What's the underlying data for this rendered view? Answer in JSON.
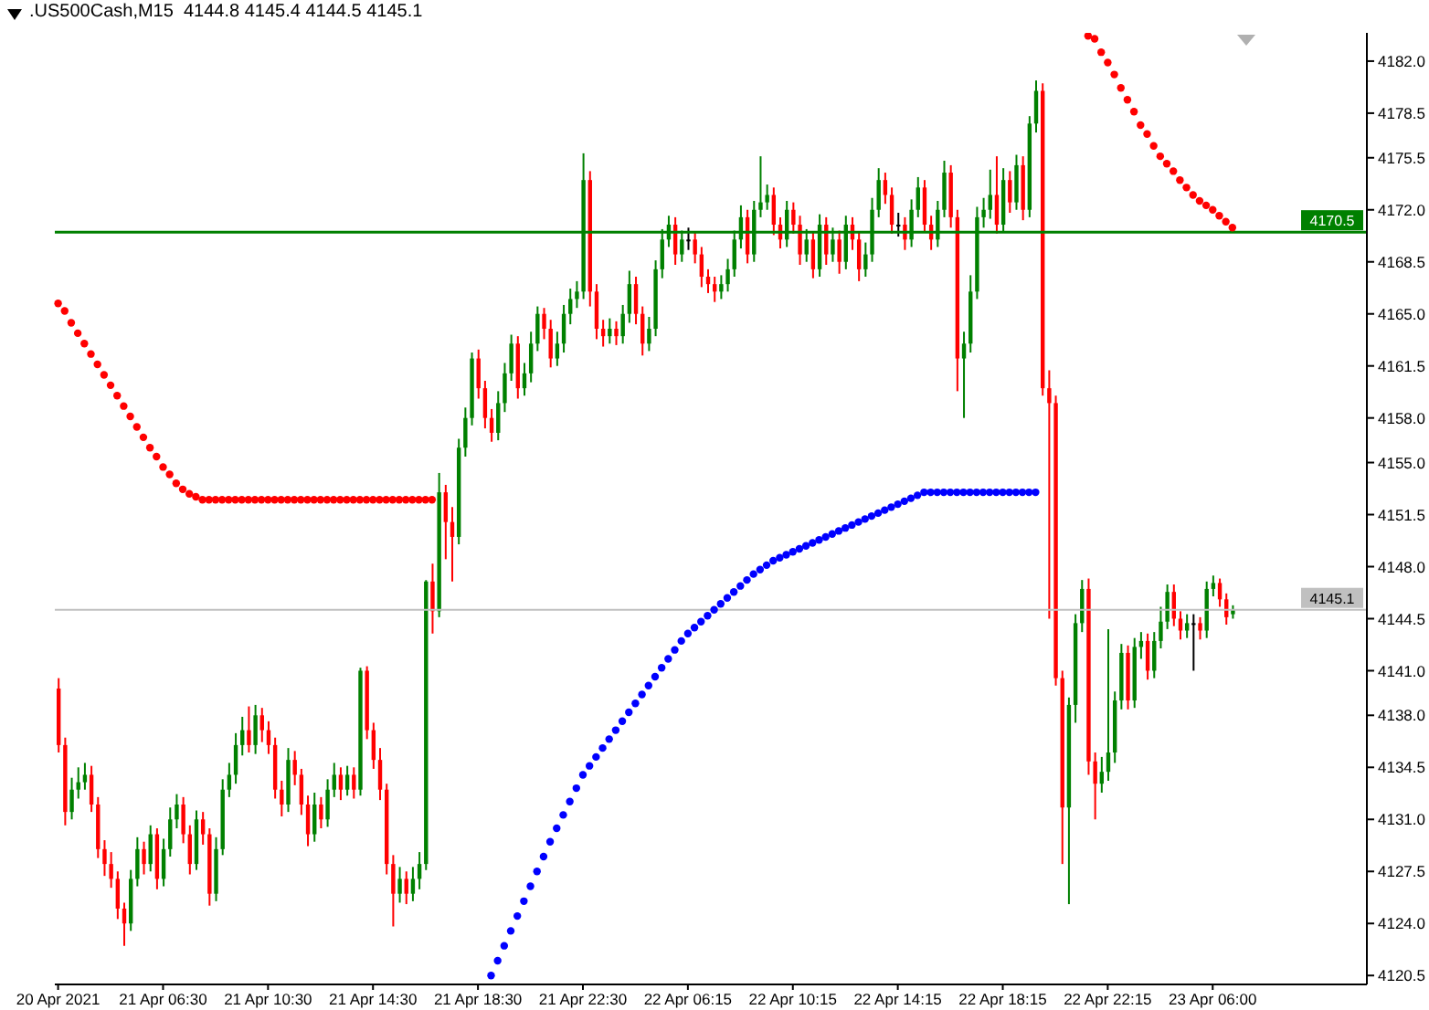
{
  "chart_data": {
    "type": "candlestick",
    "title": ".US500Cash,M15  4144.8 4145.4 4144.5 4145.1",
    "categories": [
      "20 Apr 2021",
      null,
      null,
      null,
      null,
      null,
      null,
      null,
      null,
      null,
      null,
      null,
      null,
      null,
      null,
      null,
      "21 Apr 06:30",
      null,
      null,
      null,
      null,
      null,
      null,
      null,
      null,
      null,
      null,
      null,
      null,
      null,
      null,
      null,
      "21 Apr 10:30",
      null,
      null,
      null,
      null,
      null,
      null,
      null,
      null,
      null,
      null,
      null,
      null,
      null,
      null,
      null,
      "21 Apr 14:30",
      null,
      null,
      null,
      null,
      null,
      null,
      null,
      null,
      null,
      null,
      null,
      null,
      null,
      null,
      null,
      "21 Apr 18:30",
      null,
      null,
      null,
      null,
      null,
      null,
      null,
      null,
      null,
      null,
      null,
      null,
      null,
      null,
      null,
      "21 Apr 22:30",
      null,
      null,
      null,
      null,
      null,
      null,
      null,
      null,
      null,
      null,
      null,
      null,
      null,
      null,
      null,
      "22 Apr 06:15",
      null,
      null,
      null,
      null,
      null,
      null,
      null,
      null,
      null,
      null,
      null,
      null,
      null,
      null,
      null,
      "22 Apr 10:15",
      null,
      null,
      null,
      null,
      null,
      null,
      null,
      null,
      null,
      null,
      null,
      null,
      null,
      null,
      null,
      "22 Apr 14:15",
      null,
      null,
      null,
      null,
      null,
      null,
      null,
      null,
      null,
      null,
      null,
      null,
      null,
      null,
      null,
      "22 Apr 18:15",
      null,
      null,
      null,
      null,
      null,
      null,
      null,
      null,
      null,
      null,
      null,
      null,
      null,
      null,
      null,
      "22 Apr 22:15",
      null,
      null,
      null,
      null,
      null,
      null,
      null,
      null,
      null,
      null,
      null,
      null,
      null,
      null,
      null,
      "23 Apr 06:00",
      null,
      null,
      null,
      null,
      null,
      null,
      null,
      null,
      null,
      null,
      null,
      null,
      null,
      null,
      null,
      null,
      null,
      null,
      null,
      null,
      null,
      null,
      null
    ],
    "ohlc": [
      [
        4139.8,
        4140.5,
        4135.5,
        4136
      ],
      [
        4136,
        4136.5,
        4130.6,
        4131.5
      ],
      [
        4131.5,
        4133.8,
        4131,
        4133
      ],
      [
        4133,
        4134.5,
        4132.4,
        4133.5
      ],
      [
        4133.5,
        4134.8,
        4133,
        4134
      ],
      [
        4134,
        4134.6,
        4131.5,
        4132
      ],
      [
        4132,
        4132.5,
        4128.4,
        4129
      ],
      [
        4129,
        4129.6,
        4127.2,
        4128
      ],
      [
        4128,
        4128.8,
        4126.4,
        4127
      ],
      [
        4127,
        4127.5,
        4124.3,
        4125
      ],
      [
        4125,
        4125.4,
        4122.5,
        4124
      ],
      [
        4124,
        4127.6,
        4123.5,
        4127
      ],
      [
        4127,
        4129.8,
        4126.5,
        4129
      ],
      [
        4129,
        4129.5,
        4127.3,
        4128
      ],
      [
        4128,
        4130.6,
        4127.5,
        4130
      ],
      [
        4130,
        4130.4,
        4126.3,
        4127
      ],
      [
        4127,
        4129.7,
        4126.5,
        4129
      ],
      [
        4129,
        4131.8,
        4128.5,
        4131
      ],
      [
        4131,
        4132.7,
        4130.4,
        4132
      ],
      [
        4132,
        4132.5,
        4129.4,
        4130
      ],
      [
        4130,
        4130.6,
        4127.3,
        4128
      ],
      [
        4128,
        4131.6,
        4127.6,
        4131
      ],
      [
        4131,
        4131.5,
        4129.3,
        4130
      ],
      [
        4130,
        4130.4,
        4125.2,
        4126
      ],
      [
        4126,
        4129.8,
        4125.5,
        4129
      ],
      [
        4129,
        4133.7,
        4128.6,
        4133
      ],
      [
        4133,
        4134.8,
        4132.5,
        4134
      ],
      [
        4134,
        4136.8,
        4133.4,
        4136
      ],
      [
        4136,
        4137.9,
        4135.3,
        4137
      ],
      [
        4137,
        4138.6,
        4135.5,
        4136
      ],
      [
        4136,
        4138.7,
        4135.4,
        4138
      ],
      [
        4138,
        4138.5,
        4136.2,
        4137
      ],
      [
        4137,
        4137.6,
        4135.4,
        4136
      ],
      [
        4136,
        4136.5,
        4132.4,
        4133
      ],
      [
        4133,
        4133.6,
        4131.2,
        4132
      ],
      [
        4132,
        4135.8,
        4131.5,
        4135
      ],
      [
        4135,
        4135.6,
        4133.3,
        4134
      ],
      [
        4134,
        4134.4,
        4131.3,
        4132
      ],
      [
        4132,
        4132.6,
        4129.2,
        4130
      ],
      [
        4130,
        4132.8,
        4129.5,
        4132
      ],
      [
        4132,
        4132.5,
        4130.4,
        4131
      ],
      [
        4131,
        4133.7,
        4130.5,
        4133
      ],
      [
        4133,
        4134.8,
        4132.5,
        4134
      ],
      [
        4134,
        4134.5,
        4132.3,
        4133
      ],
      [
        4133,
        4134.6,
        4132.6,
        4134
      ],
      [
        4134,
        4134.5,
        4132.4,
        4133
      ],
      [
        4133,
        4141.2,
        4132.6,
        4141
      ],
      [
        4141,
        4141.3,
        4136.4,
        4137
      ],
      [
        4137,
        4137.5,
        4134.4,
        4135
      ],
      [
        4135,
        4135.8,
        4132.3,
        4133
      ],
      [
        4133,
        4133.4,
        4127.3,
        4128
      ],
      [
        4128,
        4128.6,
        4123.8,
        4126
      ],
      [
        4126,
        4127.8,
        4125.4,
        4127
      ],
      [
        4127,
        4127.5,
        4125.3,
        4126
      ],
      [
        4126,
        4127.8,
        4125.5,
        4127
      ],
      [
        4127,
        4128.8,
        4126.3,
        4128
      ],
      [
        4128,
        4147.1,
        4127.6,
        4147
      ],
      [
        4147,
        4148.2,
        4143.5,
        4145
      ],
      [
        4145,
        4154.3,
        4144.6,
        4153
      ],
      [
        4153,
        4153.5,
        4148.5,
        4151
      ],
      [
        4151,
        4152,
        4147,
        4150
      ],
      [
        4150,
        4156.6,
        4149.5,
        4156
      ],
      [
        4156,
        4158.7,
        4155.4,
        4158
      ],
      [
        4158,
        4162.4,
        4157.5,
        4162
      ],
      [
        4162,
        4162.6,
        4159.3,
        4160
      ],
      [
        4160,
        4160.5,
        4157.3,
        4158
      ],
      [
        4158,
        4158.6,
        4156.4,
        4157
      ],
      [
        4157,
        4159.8,
        4156.5,
        4159
      ],
      [
        4159,
        4161.7,
        4158.4,
        4161
      ],
      [
        4161,
        4163.6,
        4160.5,
        4163
      ],
      [
        4163,
        4163.5,
        4159.3,
        4160
      ],
      [
        4160,
        4161.7,
        4159.5,
        4161
      ],
      [
        4161,
        4163.8,
        4160.4,
        4163
      ],
      [
        4163,
        4165.5,
        4162.5,
        4165
      ],
      [
        4165,
        4165.4,
        4163.3,
        4164
      ],
      [
        4164,
        4164.6,
        4161.4,
        4162
      ],
      [
        4162,
        4163.8,
        4161.5,
        4163
      ],
      [
        4163,
        4165.6,
        4162.4,
        4165
      ],
      [
        4165,
        4166.7,
        4164.3,
        4166
      ],
      [
        4166,
        4167.2,
        4165.4,
        4166.5
      ],
      [
        4166.5,
        4175.8,
        4166,
        4174
      ],
      [
        4174,
        4174.6,
        4165.5,
        4166.5
      ],
      [
        4166.5,
        4167,
        4163.3,
        4164
      ],
      [
        4164,
        4164.6,
        4162.8,
        4163.5
      ],
      [
        4163.5,
        4164.7,
        4163,
        4164
      ],
      [
        4164,
        4164.5,
        4162.9,
        4163.5
      ],
      [
        4163.5,
        4165.6,
        4163,
        4165
      ],
      [
        4165,
        4167.9,
        4164.4,
        4167
      ],
      [
        4167,
        4167.5,
        4164.3,
        4165
      ],
      [
        4165,
        4165.5,
        4162.2,
        4163
      ],
      [
        4163,
        4164.8,
        4162.5,
        4164
      ],
      [
        4164,
        4168.6,
        4163.5,
        4168
      ],
      [
        4168,
        4170.7,
        4167.4,
        4170
      ],
      [
        4170,
        4171.6,
        4169.5,
        4171
      ],
      [
        4171,
        4171.5,
        4168.3,
        4169
      ],
      [
        4169,
        4170.6,
        4168.5,
        4170
      ],
      [
        4170,
        4170.8,
        4169.3,
        4170
      ],
      [
        4170,
        4170.5,
        4168.4,
        4169
      ],
      [
        4169,
        4169.5,
        4166.8,
        4167.5
      ],
      [
        4167.5,
        4168,
        4166.4,
        4167
      ],
      [
        4167,
        4167.5,
        4165.8,
        4166.5
      ],
      [
        4166.5,
        4167.6,
        4166,
        4167
      ],
      [
        4167,
        4168.7,
        4166.5,
        4168
      ],
      [
        4168,
        4170.6,
        4167.5,
        4170
      ],
      [
        4170,
        4172.3,
        4169.4,
        4171.5
      ],
      [
        4171.5,
        4172,
        4168.4,
        4169
      ],
      [
        4169,
        4172.6,
        4168.5,
        4172
      ],
      [
        4172,
        4175.6,
        4171.5,
        4172.5
      ],
      [
        4172.5,
        4173.7,
        4172,
        4173
      ],
      [
        4173,
        4173.5,
        4170.3,
        4171
      ],
      [
        4171,
        4171.5,
        4169.4,
        4170
      ],
      [
        4170,
        4172.6,
        4169.5,
        4172
      ],
      [
        4172,
        4172.5,
        4170.4,
        4171
      ],
      [
        4171,
        4171.6,
        4168.3,
        4169
      ],
      [
        4169,
        4170.7,
        4168.5,
        4170
      ],
      [
        4170,
        4170.5,
        4167.4,
        4168
      ],
      [
        4168,
        4171.7,
        4167.5,
        4171
      ],
      [
        4171,
        4171.5,
        4168.3,
        4169
      ],
      [
        4169,
        4170.8,
        4168.5,
        4170
      ],
      [
        4170,
        4170.6,
        4167.7,
        4168.5
      ],
      [
        4168.5,
        4171.6,
        4168,
        4171
      ],
      [
        4171,
        4171.5,
        4169.3,
        4170
      ],
      [
        4170,
        4170.5,
        4167.2,
        4168
      ],
      [
        4168,
        4169.8,
        4167.5,
        4169
      ],
      [
        4169,
        4172.8,
        4168.5,
        4172
      ],
      [
        4172,
        4174.8,
        4171.5,
        4174
      ],
      [
        4174,
        4174.5,
        4172.4,
        4173
      ],
      [
        4173,
        4173.5,
        4170.4,
        4171
      ],
      [
        4171,
        4171.8,
        4170.2,
        4171
      ],
      [
        4171,
        4171.5,
        4169.3,
        4170
      ],
      [
        4170,
        4172.7,
        4169.5,
        4172
      ],
      [
        4172,
        4174.2,
        4171.5,
        4173.5
      ],
      [
        4173.5,
        4174,
        4170.5,
        4171
      ],
      [
        4171,
        4171.6,
        4169.3,
        4170
      ],
      [
        4170,
        4172.6,
        4169.5,
        4172
      ],
      [
        4172,
        4175.3,
        4171.5,
        4174.5
      ],
      [
        4174.5,
        4175,
        4170.8,
        4171.5
      ],
      [
        4171.5,
        4172,
        4159.8,
        4162
      ],
      [
        4162,
        4163.8,
        4158,
        4163
      ],
      [
        4163,
        4167.6,
        4162.4,
        4166.5
      ],
      [
        4166.5,
        4172.2,
        4166,
        4171.5
      ],
      [
        4171.5,
        4172.8,
        4170.8,
        4172
      ],
      [
        4172,
        4174.7,
        4171.4,
        4173
      ],
      [
        4173,
        4175.6,
        4170.4,
        4171
      ],
      [
        4171,
        4174.8,
        4170.5,
        4174
      ],
      [
        4174,
        4174.6,
        4171.8,
        4172.5
      ],
      [
        4172.5,
        4175.7,
        4172,
        4175
      ],
      [
        4175,
        4175.6,
        4171.3,
        4172
      ],
      [
        4172,
        4178.3,
        4171.5,
        4177.8
      ],
      [
        4177.8,
        4180.7,
        4177.2,
        4180
      ],
      [
        4180,
        4180.5,
        4159.5,
        4160
      ],
      [
        4160,
        4161.2,
        4144.5,
        4159
      ],
      [
        4159,
        4159.5,
        4140,
        4140.5
      ],
      [
        4140.5,
        4141,
        4128,
        4131.8
      ],
      [
        4131.8,
        4139.2,
        4125.3,
        4138.7
      ],
      [
        4138.7,
        4144.8,
        4137.5,
        4144.2
      ],
      [
        4144.2,
        4147.1,
        4143.6,
        4146.5
      ],
      [
        4146.5,
        4147.2,
        4134,
        4134.9
      ],
      [
        4134.9,
        4135.5,
        4131,
        4133.4
      ],
      [
        4133.4,
        4135.2,
        4132.8,
        4134.2
      ],
      [
        4134.2,
        4143.8,
        4133.6,
        4135.5
      ],
      [
        4135.5,
        4139.6,
        4134.8,
        4139
      ],
      [
        4139,
        4142.8,
        4138.4,
        4142.2
      ],
      [
        4142.2,
        4142.7,
        4138.4,
        4139
      ],
      [
        4139,
        4143.2,
        4138.5,
        4142.6
      ],
      [
        4142.6,
        4143.6,
        4141.8,
        4143
      ],
      [
        4143,
        4143.5,
        4140.4,
        4141
      ],
      [
        4141,
        4143.6,
        4140.5,
        4143
      ],
      [
        4143,
        4145.3,
        4142.5,
        4144.3
      ],
      [
        4144.3,
        4146.8,
        4143.8,
        4146.3
      ],
      [
        4146.3,
        4146.8,
        4144,
        4144.5
      ],
      [
        4144.5,
        4145,
        4143.1,
        4143.7
      ],
      [
        4143.7,
        4144.8,
        4143.2,
        4144.2
      ],
      [
        4144.2,
        4144.8,
        4141,
        4144.2
      ],
      [
        4144.2,
        4144.6,
        4143.1,
        4143.7
      ],
      [
        4143.7,
        4147,
        4143.2,
        4146.5
      ],
      [
        4146.5,
        4147.4,
        4146,
        4146.9
      ],
      [
        4146.9,
        4147.2,
        4145.3,
        4145.8
      ],
      [
        4145.8,
        4146.2,
        4144.1,
        4144.6
      ],
      [
        4144.8,
        4145.4,
        4144.5,
        4145.1
      ],
      null,
      null,
      null,
      null,
      null,
      null,
      null,
      null,
      null,
      null,
      null,
      null,
      null,
      null,
      null,
      null,
      null,
      null,
      null,
      null
    ],
    "colors": [
      "#ff0000",
      "#ff0000",
      "#008000",
      "#008000",
      "#008000",
      "#ff0000",
      "#ff0000",
      "#ff0000",
      "#ff0000",
      "#ff0000",
      "#ff0000",
      "#008000",
      "#008000",
      "#ff0000",
      "#008000",
      "#ff0000",
      "#008000",
      "#008000",
      "#008000",
      "#ff0000",
      "#ff0000",
      "#008000",
      "#ff0000",
      "#ff0000",
      "#008000",
      "#008000",
      "#008000",
      "#008000",
      "#008000",
      "#ff0000",
      "#008000",
      "#ff0000",
      "#ff0000",
      "#ff0000",
      "#ff0000",
      "#008000",
      "#ff0000",
      "#ff0000",
      "#ff0000",
      "#008000",
      "#ff0000",
      "#008000",
      "#008000",
      "#ff0000",
      "#008000",
      "#ff0000",
      "#008000",
      "#ff0000",
      "#ff0000",
      "#ff0000",
      "#ff0000",
      "#ff0000",
      "#008000",
      "#ff0000",
      "#008000",
      "#008000",
      "#008000",
      "#ff0000",
      "#008000",
      "#ff0000",
      "#ff0000",
      "#008000",
      "#008000",
      "#008000",
      "#ff0000",
      "#ff0000",
      "#ff0000",
      "#008000",
      "#008000",
      "#008000",
      "#ff0000",
      "#008000",
      "#008000",
      "#008000",
      "#ff0000",
      "#ff0000",
      "#008000",
      "#008000",
      "#008000",
      "#008000",
      "#008000",
      "#ff0000",
      "#ff0000",
      "#ff0000",
      "#008000",
      "#ff0000",
      "#008000",
      "#008000",
      "#ff0000",
      "#ff0000",
      "#008000",
      "#008000",
      "#008000",
      "#008000",
      "#ff0000",
      "#008000",
      "#000000",
      "#ff0000",
      "#ff0000",
      "#ff0000",
      "#ff0000",
      "#008000",
      "#008000",
      "#008000",
      "#008000",
      "#ff0000",
      "#008000",
      "#008000",
      "#008000",
      "#ff0000",
      "#ff0000",
      "#008000",
      "#ff0000",
      "#ff0000",
      "#008000",
      "#ff0000",
      "#008000",
      "#ff0000",
      "#008000",
      "#ff0000",
      "#008000",
      "#ff0000",
      "#ff0000",
      "#008000",
      "#008000",
      "#008000",
      "#ff0000",
      "#ff0000",
      "#000000",
      "#ff0000",
      "#008000",
      "#008000",
      "#ff0000",
      "#ff0000",
      "#008000",
      "#008000",
      "#ff0000",
      "#ff0000",
      "#008000",
      "#008000",
      "#008000",
      "#008000",
      "#008000",
      "#ff0000",
      "#008000",
      "#ff0000",
      "#008000",
      "#ff0000",
      "#008000",
      "#008000",
      "#ff0000",
      "#ff0000",
      "#ff0000",
      "#ff0000",
      "#008000",
      "#008000",
      "#008000",
      "#ff0000",
      "#ff0000",
      "#008000",
      "#008000",
      "#008000",
      "#008000",
      "#ff0000",
      "#008000",
      "#008000",
      "#ff0000",
      "#008000",
      "#008000",
      "#008000",
      "#ff0000",
      "#ff0000",
      "#008000",
      "#000000",
      "#ff0000",
      "#008000",
      "#008000",
      "#ff0000",
      "#ff0000",
      "#008000",
      null,
      null,
      null,
      null,
      null,
      null,
      null,
      null,
      null,
      null,
      null,
      null,
      null,
      null,
      null,
      null,
      null,
      null,
      null,
      null
    ],
    "series": [
      {
        "type": "scatter",
        "color": "#ff0000",
        "values": [
          4165.7,
          4165.2,
          4164.4,
          4163.7,
          4163.0,
          4162.3,
          4161.6,
          4160.9,
          4160.2,
          4159.5,
          4158.8,
          4158.1,
          4157.4,
          4156.7,
          4156.0,
          4155.4,
          4154.7,
          4154.2,
          4153.6,
          4153.2,
          4152.9,
          4152.7,
          4152.5,
          4152.5,
          4152.5,
          4152.5,
          4152.5,
          4152.5,
          4152.5,
          4152.5,
          4152.5,
          4152.5,
          4152.5,
          4152.5,
          4152.5,
          4152.5,
          4152.5,
          4152.5,
          4152.5,
          4152.5,
          4152.5,
          4152.5,
          4152.5,
          4152.5,
          4152.5,
          4152.5,
          4152.5,
          4152.5,
          4152.5,
          4152.5,
          4152.5,
          4152.5,
          4152.5,
          4152.5,
          4152.5,
          4152.5,
          4152.5,
          4152.5,
          null,
          null,
          null,
          null,
          null,
          null,
          null,
          null,
          null,
          null,
          null,
          null,
          null,
          null,
          null,
          null,
          null,
          null,
          null,
          null,
          null,
          null,
          null,
          null,
          null,
          null,
          null,
          null,
          null,
          null,
          null,
          null,
          null,
          null,
          null,
          null,
          null,
          null,
          null,
          null,
          null,
          null,
          null,
          null,
          null,
          null,
          null,
          null,
          null,
          null,
          null,
          null,
          null,
          null,
          null,
          null,
          null,
          null,
          null,
          null,
          null,
          null,
          null,
          null,
          null,
          null,
          null,
          null,
          null,
          null,
          null,
          null,
          null,
          null,
          null,
          null,
          null,
          null,
          null,
          null,
          null,
          null,
          null,
          null,
          null,
          null,
          null,
          null,
          null,
          null,
          null,
          null,
          null,
          null,
          null,
          null,
          null,
          null,
          null,
          4183.7,
          4183.5,
          4182.6,
          4181.9,
          4181.1,
          4180.2,
          4179.4,
          4178.6,
          4177.7,
          4177.1,
          4176.3,
          4175.6,
          4175.1,
          4174.6,
          4174.0,
          4173.5,
          4173.0,
          4172.6,
          4172.3,
          4172.0,
          4171.6,
          4171.2,
          4170.8,
          null,
          null,
          null,
          null,
          null,
          null,
          null,
          null,
          null,
          null,
          null,
          null,
          null,
          null,
          null,
          null,
          null,
          null,
          null,
          null
        ]
      },
      {
        "type": "scatter",
        "color": "#0000ff",
        "values": [
          null,
          null,
          null,
          null,
          null,
          null,
          null,
          null,
          null,
          null,
          null,
          null,
          null,
          null,
          null,
          null,
          null,
          null,
          null,
          null,
          null,
          null,
          null,
          null,
          null,
          null,
          null,
          null,
          null,
          null,
          null,
          null,
          null,
          null,
          null,
          null,
          null,
          null,
          null,
          null,
          null,
          null,
          null,
          null,
          null,
          null,
          null,
          null,
          null,
          null,
          null,
          null,
          null,
          null,
          null,
          null,
          null,
          null,
          null,
          null,
          null,
          null,
          null,
          null,
          null,
          null,
          4120.5,
          4121.5,
          4122.5,
          4123.5,
          4124.5,
          4125.5,
          4126.5,
          4127.5,
          4128.5,
          4129.5,
          4130.4,
          4131.3,
          4132.2,
          4133.1,
          4134.0,
          4134.6,
          4135.2,
          4135.8,
          4136.4,
          4137.0,
          4137.6,
          4138.2,
          4138.8,
          4139.4,
          4140.0,
          4140.6,
          4141.2,
          4141.8,
          4142.4,
          4143.0,
          4143.5,
          4143.9,
          4144.3,
          4144.7,
          4145.1,
          4145.5,
          4145.9,
          4146.3,
          4146.7,
          4147.1,
          4147.5,
          4147.8,
          4148.1,
          4148.4,
          4148.6,
          4148.8,
          4149.0,
          4149.2,
          4149.4,
          4149.6,
          4149.8,
          4150.0,
          4150.2,
          4150.4,
          4150.6,
          4150.8,
          4151.0,
          4151.2,
          4151.4,
          4151.6,
          4151.8,
          4152.0,
          4152.2,
          4152.4,
          4152.6,
          4152.8,
          4153.0,
          4153.0,
          4153.0,
          4153.0,
          4153.0,
          4153.0,
          4153.0,
          4153.0,
          4153.0,
          4153.0,
          4153.0,
          4153.0,
          4153.0,
          4153.0,
          4153.0,
          4153.0,
          4153.0,
          4153.0,
          null,
          null,
          null,
          null,
          null,
          null,
          null,
          null,
          null,
          null,
          null,
          null,
          null,
          null,
          null,
          null,
          null,
          null,
          null,
          null,
          null,
          null,
          null,
          null,
          null,
          null,
          null,
          null,
          null,
          null,
          null,
          null,
          null,
          null,
          null,
          null,
          null,
          null,
          null,
          null,
          null,
          null,
          null,
          null,
          null,
          null,
          null,
          null,
          null,
          null
        ]
      }
    ],
    "marker": "circle",
    "ylim": [
      4119.9,
      4183.9
    ],
    "yticks": [
      {
        "value": 4120.5,
        "label": "4120.5"
      },
      {
        "value": 4124,
        "label": "4124.0"
      },
      {
        "value": 4127.5,
        "label": "4127.5"
      },
      {
        "value": 4131,
        "label": "4131.0"
      },
      {
        "value": 4134.5,
        "label": "4134.5"
      },
      {
        "value": 4138,
        "label": "4138.0"
      },
      {
        "value": 4141,
        "label": "4141.0"
      },
      {
        "value": 4144.5,
        "label": "4144.5"
      },
      {
        "value": 4148,
        "label": "4148.0"
      },
      {
        "value": 4151.5,
        "label": "4151.5"
      },
      {
        "value": 4155,
        "label": "4155.0"
      },
      {
        "value": 4158,
        "label": "4158.0"
      },
      {
        "value": 4161.5,
        "label": "4161.5"
      },
      {
        "value": 4165,
        "label": "4165.0"
      },
      {
        "value": 4168.5,
        "label": "4168.5"
      },
      {
        "value": 4172,
        "label": "4172.0"
      },
      {
        "value": 4175.5,
        "label": "4175.5"
      },
      {
        "value": 4178.5,
        "label": "4178.5"
      },
      {
        "value": 4182,
        "label": "4182.0"
      }
    ],
    "ref_lines": [
      {
        "axis": "y",
        "value": 4170.5,
        "label": "4170.5",
        "color": "#008000",
        "line_style": "solid"
      },
      {
        "axis": "y",
        "value": 4145.1,
        "label": "4145.1",
        "color": "#c0c0c0",
        "line_style": "solid"
      }
    ]
  }
}
